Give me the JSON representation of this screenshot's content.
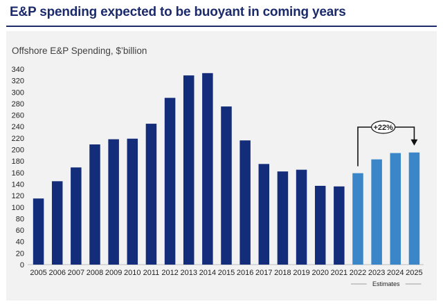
{
  "page_title": "E&P spending expected to be buoyant in coming years",
  "chart_data": {
    "type": "bar",
    "title": "Offshore E&P Spending, $’billion",
    "xlabel": "",
    "ylabel": "",
    "ylim": [
      0,
      340
    ],
    "yticks": [
      0,
      20,
      40,
      60,
      80,
      100,
      120,
      140,
      160,
      180,
      200,
      220,
      240,
      260,
      280,
      300,
      320,
      340
    ],
    "grid": false,
    "categories": [
      "2005",
      "2006",
      "2007",
      "2008",
      "2009",
      "2010",
      "2011",
      "2012",
      "2013",
      "2014",
      "2015",
      "2016",
      "2017",
      "2018",
      "2019",
      "2020",
      "2021",
      "2022",
      "2023",
      "2024",
      "2025"
    ],
    "values": [
      115,
      145,
      169,
      209,
      218,
      219,
      245,
      290,
      329,
      333,
      275,
      216,
      175,
      162,
      165,
      137,
      136,
      159,
      183,
      194,
      195
    ],
    "estimated": [
      false,
      false,
      false,
      false,
      false,
      false,
      false,
      false,
      false,
      false,
      false,
      false,
      false,
      false,
      false,
      false,
      false,
      true,
      true,
      true,
      true
    ],
    "estimates_label": "Estimates",
    "annotation": {
      "text": "+22%",
      "from": "2022",
      "to": "2025"
    },
    "colors": {
      "actual": "#142d7a",
      "estimate": "#3a86c8",
      "arrow": "#111111"
    }
  }
}
